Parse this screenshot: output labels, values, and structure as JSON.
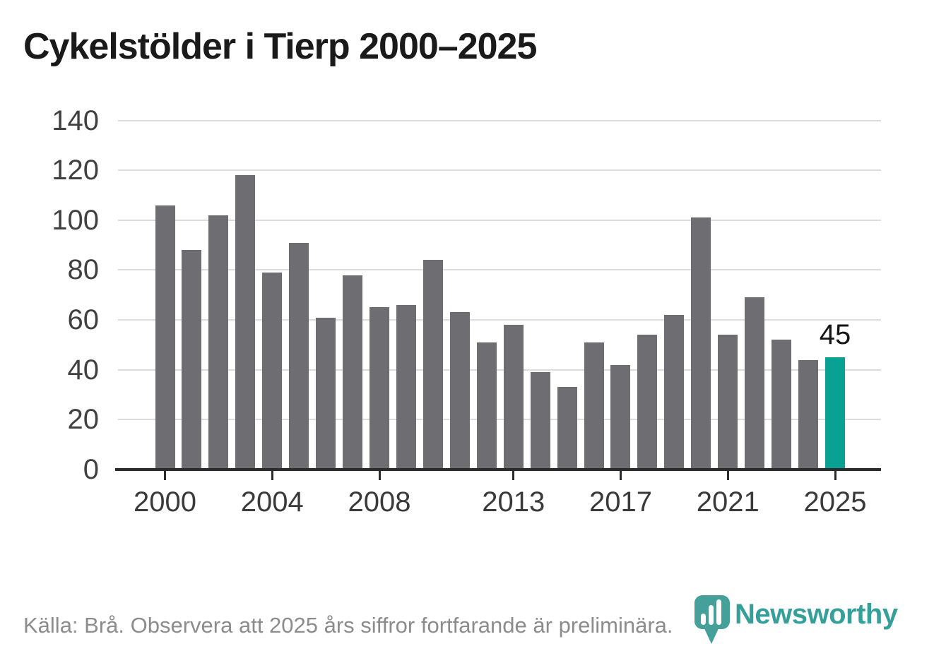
{
  "title": "Cykelstölder i Tierp 2000–2025",
  "footer": {
    "source_note": "Källa: Brå. Observera att 2025 års siffror fortfarande är preliminära."
  },
  "logo": {
    "brand": "Newsworthy"
  },
  "colors": {
    "bar": "#6d6d72",
    "highlight": "#0aa195",
    "logo_teal": "#45a099",
    "wordmark_teal": "#35a099",
    "gridline": "#dcdcdc",
    "axis": "#2b2b2b",
    "title_text": "#1a1a1a",
    "footer_text": "#8c8c8c",
    "tick_label": "#3a3a3a"
  },
  "chart_data": {
    "type": "bar",
    "title": "Cykelstölder i Tierp 2000–2025",
    "xlabel": "",
    "ylabel": "",
    "categories": [
      2000,
      2001,
      2002,
      2003,
      2004,
      2005,
      2006,
      2007,
      2008,
      2009,
      2010,
      2011,
      2012,
      2013,
      2014,
      2015,
      2016,
      2017,
      2018,
      2019,
      2020,
      2021,
      2022,
      2023,
      2024,
      2025
    ],
    "values": [
      106,
      88,
      102,
      118,
      79,
      91,
      61,
      78,
      65,
      66,
      84,
      63,
      51,
      58,
      39,
      33,
      51,
      42,
      54,
      62,
      101,
      54,
      69,
      52,
      44,
      45
    ],
    "highlight_year": 2025,
    "annotation": {
      "year": 2025,
      "text": "45"
    },
    "x_tick_years": [
      2000,
      2004,
      2008,
      2013,
      2017,
      2021,
      2025
    ],
    "y_ticks": [
      0,
      20,
      40,
      60,
      80,
      100,
      120,
      140
    ],
    "ylim": [
      0,
      140
    ],
    "grid": true,
    "legend": false
  }
}
